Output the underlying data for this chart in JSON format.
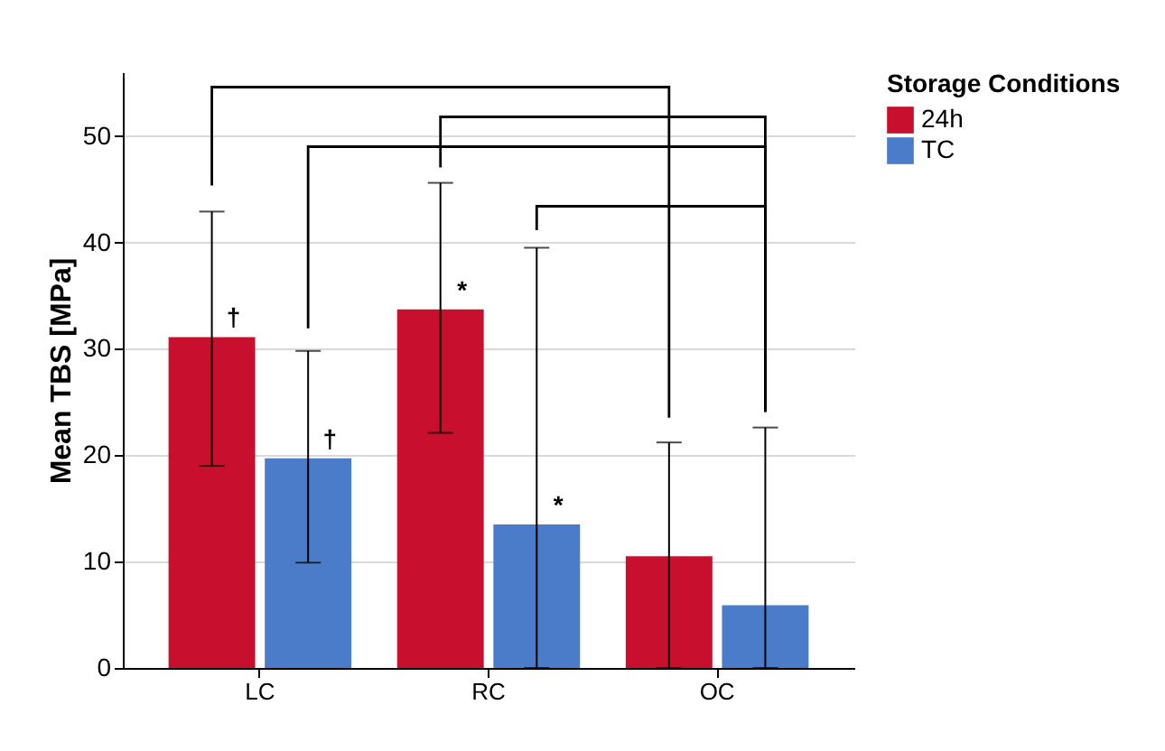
{
  "chart_data": {
    "type": "bar",
    "ylabel": "Mean TBS [MPa]",
    "legend_title": "Storage Conditions",
    "categories": [
      "LC",
      "RC",
      "OC"
    ],
    "series": [
      {
        "name": "24h",
        "color": "#c8102e",
        "values": [
          31.1,
          33.7,
          10.5
        ],
        "errors": [
          [
            19.0,
            42.9
          ],
          [
            22.1,
            45.6
          ],
          [
            0,
            21.2
          ]
        ]
      },
      {
        "name": "TC",
        "color": "#4a7cc9",
        "values": [
          19.7,
          13.5,
          5.9
        ],
        "errors": [
          [
            9.9,
            29.8
          ],
          [
            0,
            39.5
          ],
          [
            0,
            22.6
          ]
        ]
      }
    ],
    "ylim": [
      0,
      56
    ],
    "yticks": [
      0,
      10,
      20,
      30,
      40,
      50
    ],
    "grid": "y",
    "legend": "top right",
    "annotations": [
      {
        "text": "†",
        "x": "LC",
        "y": 31.1
      },
      {
        "text": "†",
        "x": "LC",
        "y": 19.7
      },
      {
        "text": "*",
        "x": "RC",
        "y": 33.7
      },
      {
        "text": "*",
        "x": "RC",
        "y": 13.5
      }
    ]
  }
}
